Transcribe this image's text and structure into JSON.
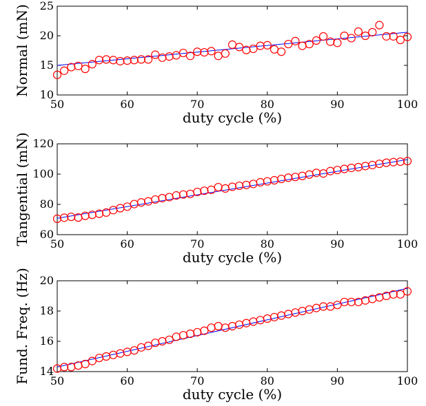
{
  "chart_data": [
    {
      "type": "scatter",
      "xlabel": "duty cycle (%)",
      "ylabel": "Normal (mN)",
      "xlim": [
        50,
        100
      ],
      "ylim": [
        10,
        25
      ],
      "xticks": [
        50,
        60,
        70,
        80,
        90,
        100
      ],
      "yticks": [
        10,
        15,
        20,
        25
      ],
      "grid": false,
      "marker_color": "#ff0000",
      "line_color": "#0000ff",
      "fit": {
        "x": [
          50,
          100
        ],
        "y": [
          15.0,
          20.6
        ]
      },
      "x": [
        50,
        51,
        52,
        53,
        54,
        55,
        56,
        57,
        58,
        59,
        60,
        61,
        62,
        63,
        64,
        65,
        66,
        67,
        68,
        69,
        70,
        71,
        72,
        73,
        74,
        75,
        76,
        77,
        78,
        79,
        80,
        81,
        82,
        83,
        84,
        85,
        86,
        87,
        88,
        89,
        90,
        91,
        92,
        93,
        94,
        95,
        96,
        97,
        98,
        99,
        100
      ],
      "y": [
        13.4,
        14.1,
        14.7,
        14.9,
        14.4,
        15.2,
        15.9,
        16.0,
        15.9,
        15.7,
        15.8,
        15.9,
        16.0,
        16.0,
        16.8,
        16.3,
        16.5,
        16.7,
        17.1,
        16.6,
        17.3,
        17.2,
        17.4,
        16.6,
        17.0,
        18.5,
        18.1,
        17.6,
        17.8,
        18.3,
        18.4,
        17.7,
        17.3,
        18.6,
        19.1,
        18.3,
        18.6,
        19.2,
        19.9,
        19.0,
        18.8,
        20.0,
        19.6,
        20.7,
        20.0,
        20.6,
        21.8,
        19.9,
        19.9,
        19.3,
        19.8
      ]
    },
    {
      "type": "scatter",
      "xlabel": "duty cycle (%)",
      "ylabel": "Tangential (mN)",
      "xlim": [
        50,
        100
      ],
      "ylim": [
        60,
        120
      ],
      "xticks": [
        50,
        60,
        70,
        80,
        90,
        100
      ],
      "yticks": [
        60,
        80,
        100,
        120
      ],
      "grid": false,
      "marker_color": "#ff0000",
      "line_color": "#0000ff",
      "fit": {
        "x": [
          50,
          100
        ],
        "y": [
          70.8,
          109.6
        ]
      },
      "x": [
        50,
        51,
        52,
        53,
        54,
        55,
        56,
        57,
        58,
        59,
        60,
        61,
        62,
        63,
        64,
        65,
        66,
        67,
        68,
        69,
        70,
        71,
        72,
        73,
        74,
        75,
        76,
        77,
        78,
        79,
        80,
        81,
        82,
        83,
        84,
        85,
        86,
        87,
        88,
        89,
        90,
        91,
        92,
        93,
        94,
        95,
        96,
        97,
        98,
        99,
        100
      ],
      "y": [
        70.5,
        71.2,
        71.8,
        71.3,
        72.4,
        73.1,
        73.8,
        74.6,
        76.2,
        77.5,
        78.5,
        80.2,
        81.3,
        82.0,
        83.2,
        84.1,
        84.8,
        85.9,
        86.5,
        86.9,
        88.2,
        89.0,
        89.6,
        91.4,
        90.5,
        91.6,
        92.3,
        92.8,
        93.5,
        94.6,
        95.2,
        95.9,
        96.8,
        97.6,
        98.1,
        98.8,
        99.7,
        100.8,
        100.4,
        102.0,
        102.7,
        103.4,
        104.1,
        104.6,
        105.3,
        106.0,
        106.8,
        107.5,
        107.9,
        108.2,
        108.6
      ]
    },
    {
      "type": "scatter",
      "xlabel": "duty cycle (%)",
      "ylabel": "Fund. Freq. (Hz)",
      "xlim": [
        50,
        100
      ],
      "ylim": [
        14,
        20
      ],
      "xticks": [
        50,
        60,
        70,
        80,
        90,
        100
      ],
      "yticks": [
        14,
        16,
        18,
        20
      ],
      "grid": false,
      "marker_color": "#ff0000",
      "line_color": "#0000ff",
      "fit": {
        "x": [
          50,
          100
        ],
        "y": [
          14.3,
          19.5
        ]
      },
      "x": [
        50,
        51,
        52,
        53,
        54,
        55,
        56,
        57,
        58,
        59,
        60,
        61,
        62,
        63,
        64,
        65,
        66,
        67,
        68,
        69,
        70,
        71,
        72,
        73,
        74,
        75,
        76,
        77,
        78,
        79,
        80,
        81,
        82,
        83,
        84,
        85,
        86,
        87,
        88,
        89,
        90,
        91,
        92,
        93,
        94,
        95,
        96,
        97,
        98,
        99,
        100
      ],
      "y": [
        14.2,
        14.3,
        14.3,
        14.4,
        14.5,
        14.7,
        14.9,
        15.0,
        15.1,
        15.2,
        15.3,
        15.4,
        15.6,
        15.7,
        15.9,
        16.0,
        16.1,
        16.3,
        16.4,
        16.5,
        16.6,
        16.7,
        16.9,
        17.0,
        16.9,
        17.0,
        17.1,
        17.2,
        17.3,
        17.4,
        17.5,
        17.6,
        17.7,
        17.8,
        17.9,
        18.0,
        18.1,
        18.2,
        18.3,
        18.3,
        18.4,
        18.6,
        18.6,
        18.6,
        18.7,
        18.8,
        18.9,
        19.0,
        19.1,
        19.1,
        19.3
      ]
    }
  ]
}
